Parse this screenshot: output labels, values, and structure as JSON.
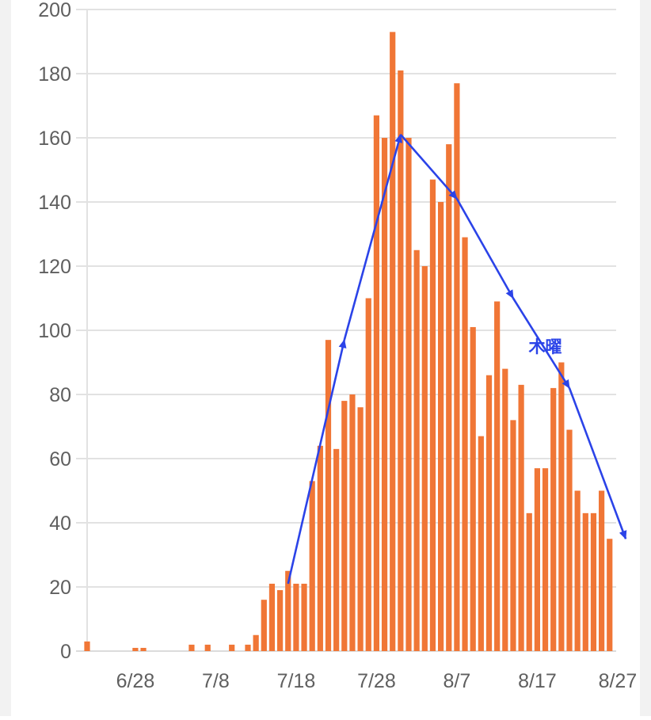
{
  "chart_data": {
    "type": "bar",
    "title": "",
    "xlabel": "",
    "ylabel": "",
    "ylim": [
      0,
      200
    ],
    "y_ticks": [
      0,
      20,
      40,
      60,
      80,
      100,
      120,
      140,
      160,
      180,
      200
    ],
    "x_ticks": [
      {
        "label": "6/28",
        "day": 6
      },
      {
        "label": "7/8",
        "day": 16
      },
      {
        "label": "7/18",
        "day": 26
      },
      {
        "label": "7/28",
        "day": 36
      },
      {
        "label": "8/7",
        "day": 46
      },
      {
        "label": "8/17",
        "day": 56
      },
      {
        "label": "8/27",
        "day": 66
      }
    ],
    "x": [
      "6/22",
      "6/23",
      "6/24",
      "6/25",
      "6/26",
      "6/27",
      "6/28",
      "6/29",
      "6/30",
      "7/1",
      "7/2",
      "7/3",
      "7/4",
      "7/5",
      "7/6",
      "7/7",
      "7/8",
      "7/9",
      "7/10",
      "7/11",
      "7/12",
      "7/13",
      "7/14",
      "7/15",
      "7/16",
      "7/17",
      "7/18",
      "7/19",
      "7/20",
      "7/21",
      "7/22",
      "7/23",
      "7/24",
      "7/25",
      "7/26",
      "7/27",
      "7/28",
      "7/29",
      "7/30",
      "7/31",
      "8/1",
      "8/2",
      "8/3",
      "8/4",
      "8/5",
      "8/6",
      "8/7",
      "8/8",
      "8/9",
      "8/10",
      "8/11",
      "8/12",
      "8/13",
      "8/14",
      "8/15",
      "8/16",
      "8/17",
      "8/18",
      "8/19",
      "8/20",
      "8/21",
      "8/22",
      "8/23",
      "8/24",
      "8/25",
      "8/26",
      "8/27"
    ],
    "values": [
      3,
      0,
      0,
      0,
      0,
      0,
      1,
      1,
      0,
      0,
      0,
      0,
      0,
      2,
      0,
      2,
      0,
      0,
      2,
      0,
      2,
      5,
      16,
      21,
      19,
      25,
      21,
      21,
      53,
      64,
      97,
      63,
      78,
      80,
      76,
      110,
      167,
      160,
      193,
      181,
      160,
      125,
      120,
      147,
      140,
      158,
      177,
      129,
      101,
      67,
      86,
      109,
      88,
      72,
      83,
      43,
      57,
      57,
      82,
      90,
      69,
      50,
      43,
      43,
      50,
      35,
      0
    ],
    "colors": {
      "bars": "#f07636",
      "trend": "#2b43e8",
      "grid": "#e2e2e2",
      "tick_text": "#5f5f5f"
    },
    "trend_line": [
      {
        "x": "7/17",
        "y": 21
      },
      {
        "x": "7/24",
        "y": 97
      },
      {
        "x": "7/31",
        "y": 161
      },
      {
        "x": "8/7",
        "y": 141
      },
      {
        "x": "8/14",
        "y": 110
      },
      {
        "x": "8/21",
        "y": 82
      },
      {
        "x": "8/28",
        "y": 35
      }
    ],
    "annotations": [
      {
        "text": "木曜",
        "x": "8/18",
        "y": 98
      }
    ],
    "grid": true
  }
}
